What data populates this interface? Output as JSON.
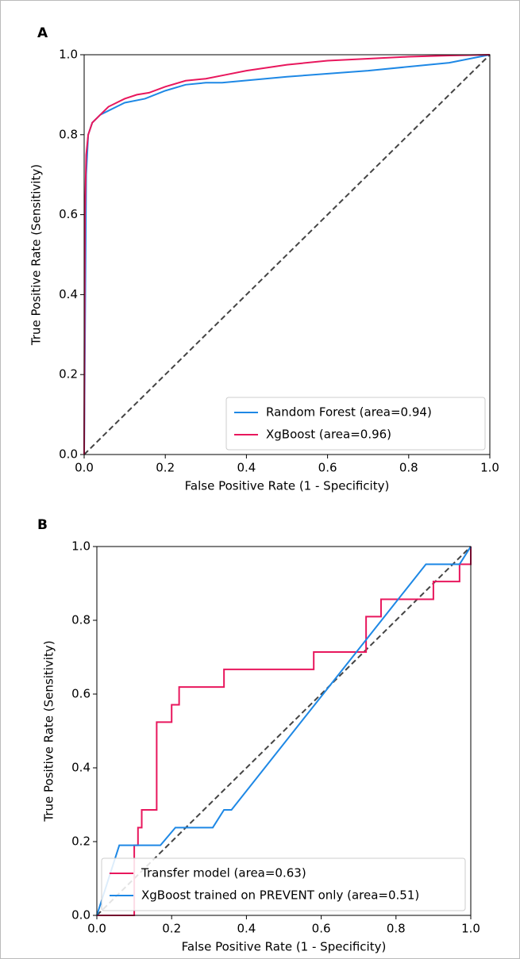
{
  "chart_data": [
    {
      "type": "line",
      "label": "A",
      "xlabel": "False Positive Rate (1 - Specificity)",
      "ylabel": "True Positive Rate (Sensitivity)",
      "xlim": [
        0,
        1
      ],
      "ylim": [
        0,
        1
      ],
      "xticks": [
        {
          "value": 0,
          "label": "0.0"
        },
        {
          "value": 0.2,
          "label": "0.2"
        },
        {
          "value": 0.4,
          "label": "0.4"
        },
        {
          "value": 0.6,
          "label": "0.6"
        },
        {
          "value": 0.8,
          "label": "0.8"
        },
        {
          "value": 1,
          "label": "1.0"
        }
      ],
      "yticks": [
        {
          "value": 0,
          "label": "0.0"
        },
        {
          "value": 0.2,
          "label": "0.2"
        },
        {
          "value": 0.4,
          "label": "0.4"
        },
        {
          "value": 0.6,
          "label": "0.6"
        },
        {
          "value": 0.8,
          "label": "0.8"
        },
        {
          "value": 1,
          "label": "1.0"
        }
      ],
      "legend": "lower right",
      "diagonal": true,
      "series": [
        {
          "name": "Random Forest (area=0.94)",
          "color": "#1e88e5",
          "x": [
            0,
            0.005,
            0.01,
            0.02,
            0.04,
            0.06,
            0.08,
            0.1,
            0.15,
            0.2,
            0.25,
            0.3,
            0.34,
            0.5,
            0.7,
            0.9,
            1
          ],
          "values": [
            0,
            0.7,
            0.8,
            0.83,
            0.85,
            0.86,
            0.87,
            0.88,
            0.89,
            0.91,
            0.925,
            0.93,
            0.93,
            0.945,
            0.96,
            0.98,
            1
          ]
        },
        {
          "name": "XgBoost (area=0.96)",
          "color": "#e8175d",
          "x": [
            0,
            0.002,
            0.005,
            0.01,
            0.02,
            0.04,
            0.06,
            0.08,
            0.1,
            0.13,
            0.16,
            0.2,
            0.25,
            0.3,
            0.35,
            0.4,
            0.5,
            0.6,
            0.7,
            0.8,
            0.9,
            1
          ],
          "values": [
            0,
            0.6,
            0.75,
            0.8,
            0.83,
            0.85,
            0.87,
            0.88,
            0.89,
            0.9,
            0.905,
            0.92,
            0.935,
            0.94,
            0.95,
            0.96,
            0.975,
            0.985,
            0.99,
            0.995,
            0.998,
            1
          ]
        }
      ]
    },
    {
      "type": "line",
      "label": "B",
      "xlabel": "False Positive Rate (1 - Specificity)",
      "ylabel": "True Positive Rate (Sensitivity)",
      "xlim": [
        0,
        1
      ],
      "ylim": [
        0,
        1
      ],
      "xticks": [
        {
          "value": 0,
          "label": "0.0"
        },
        {
          "value": 0.2,
          "label": "0.2"
        },
        {
          "value": 0.4,
          "label": "0.4"
        },
        {
          "value": 0.6,
          "label": "0.6"
        },
        {
          "value": 0.8,
          "label": "0.8"
        },
        {
          "value": 1,
          "label": "1.0"
        }
      ],
      "yticks": [
        {
          "value": 0,
          "label": "0.0"
        },
        {
          "value": 0.2,
          "label": "0.2"
        },
        {
          "value": 0.4,
          "label": "0.4"
        },
        {
          "value": 0.6,
          "label": "0.6"
        },
        {
          "value": 0.8,
          "label": "0.8"
        },
        {
          "value": 1,
          "label": "1.0"
        }
      ],
      "legend": "lower left",
      "diagonal": true,
      "series": [
        {
          "name": "Transfer model (area=0.63)",
          "color": "#e8175d",
          "x": [
            0,
            0.1,
            0.1,
            0.11,
            0.11,
            0.12,
            0.12,
            0.16,
            0.16,
            0.2,
            0.2,
            0.22,
            0.22,
            0.34,
            0.34,
            0.58,
            0.58,
            0.72,
            0.72,
            0.76,
            0.76,
            0.9,
            0.9,
            0.97,
            0.97,
            1,
            1
          ],
          "values": [
            0,
            0,
            0.19,
            0.19,
            0.238,
            0.238,
            0.286,
            0.286,
            0.524,
            0.524,
            0.571,
            0.571,
            0.619,
            0.619,
            0.667,
            0.667,
            0.714,
            0.714,
            0.81,
            0.81,
            0.857,
            0.857,
            0.905,
            0.905,
            0.952,
            0.952,
            1
          ]
        },
        {
          "name": "XgBoost trained on PREVENT only (area=0.51)",
          "color": "#1e88e5",
          "x": [
            0,
            0.06,
            0.17,
            0.21,
            0.31,
            0.34,
            0.36,
            0.88,
            0.97,
            1
          ],
          "values": [
            0,
            0.19,
            0.19,
            0.238,
            0.238,
            0.286,
            0.286,
            0.952,
            0.952,
            1
          ]
        }
      ]
    }
  ]
}
